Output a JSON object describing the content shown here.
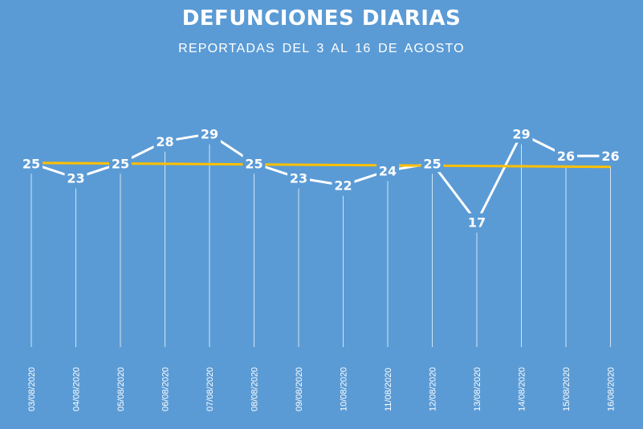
{
  "chart_data": {
    "type": "line",
    "title": "DEFUNCIONES DIARIAS",
    "subtitle": "REPORTADAS  DEL 3 AL 16 DE AGOSTO",
    "categories": [
      "03/08/2020",
      "04/08/2020",
      "05/08/2020",
      "06/08/2020",
      "07/08/2020",
      "08/08/2020",
      "09/08/2020",
      "10/08/2020",
      "11/08/2020",
      "12/08/2020",
      "13/08/2020",
      "14/08/2020",
      "15/08/2020",
      "16/08/2020"
    ],
    "series": [
      {
        "values": [
          25,
          23,
          25,
          28,
          29,
          25,
          23,
          22,
          24,
          25,
          17,
          29,
          26,
          26
        ],
        "color": "#ffffff"
      }
    ],
    "trendline": {
      "type": "linear",
      "color": "#ffc000"
    },
    "ylim": [
      0,
      32
    ],
    "xlabel": "",
    "ylabel": "",
    "grid": false,
    "data_labels": true,
    "drop_lines": true,
    "legend": "none",
    "background": "#5b9bd5"
  }
}
